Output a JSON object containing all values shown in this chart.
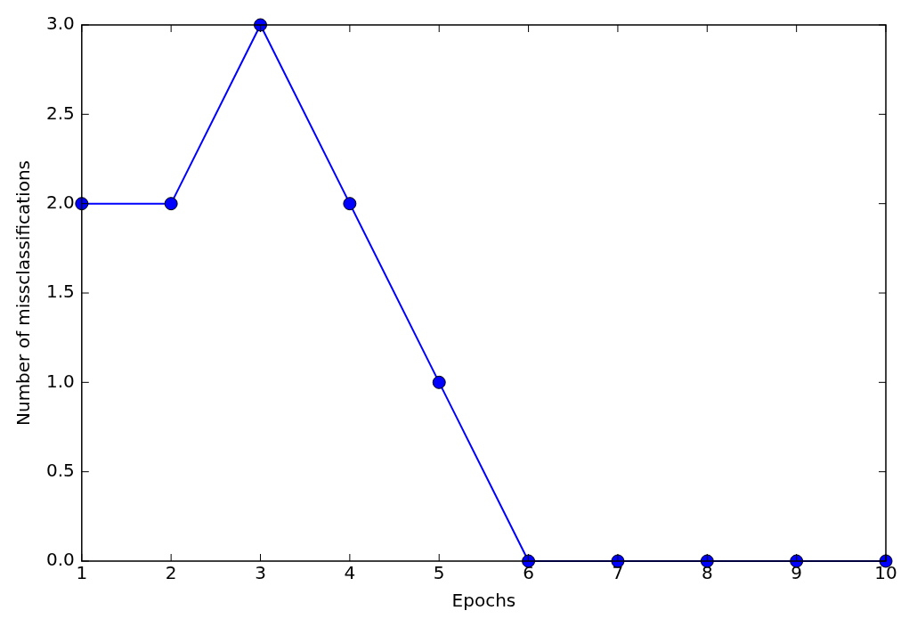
{
  "chart_data": {
    "type": "line",
    "xlabel": "Epochs",
    "ylabel": "Number of missclassifications",
    "x": [
      1,
      2,
      3,
      4,
      5,
      6,
      7,
      8,
      9,
      10
    ],
    "series": [
      {
        "color": "#0000ff",
        "values": [
          2,
          2,
          3,
          2,
          1,
          0,
          0,
          0,
          0,
          0
        ]
      }
    ],
    "xlim": [
      1,
      10
    ],
    "xticks": [
      1,
      2,
      3,
      4,
      5,
      6,
      7,
      8,
      9,
      10
    ],
    "ylim": [
      0,
      3
    ],
    "yticks": [
      {
        "value": 0,
        "label": "0.0"
      },
      {
        "value": 0.5,
        "label": "0.5"
      },
      {
        "value": 1,
        "label": "1.0"
      },
      {
        "value": 1.5,
        "label": "1.5"
      },
      {
        "value": 2,
        "label": "2.0"
      },
      {
        "value": 2.5,
        "label": "2.5"
      },
      {
        "value": 3,
        "label": "3.0"
      }
    ],
    "grid": false,
    "legend": false,
    "marker": "circle",
    "line_style": "solid"
  }
}
